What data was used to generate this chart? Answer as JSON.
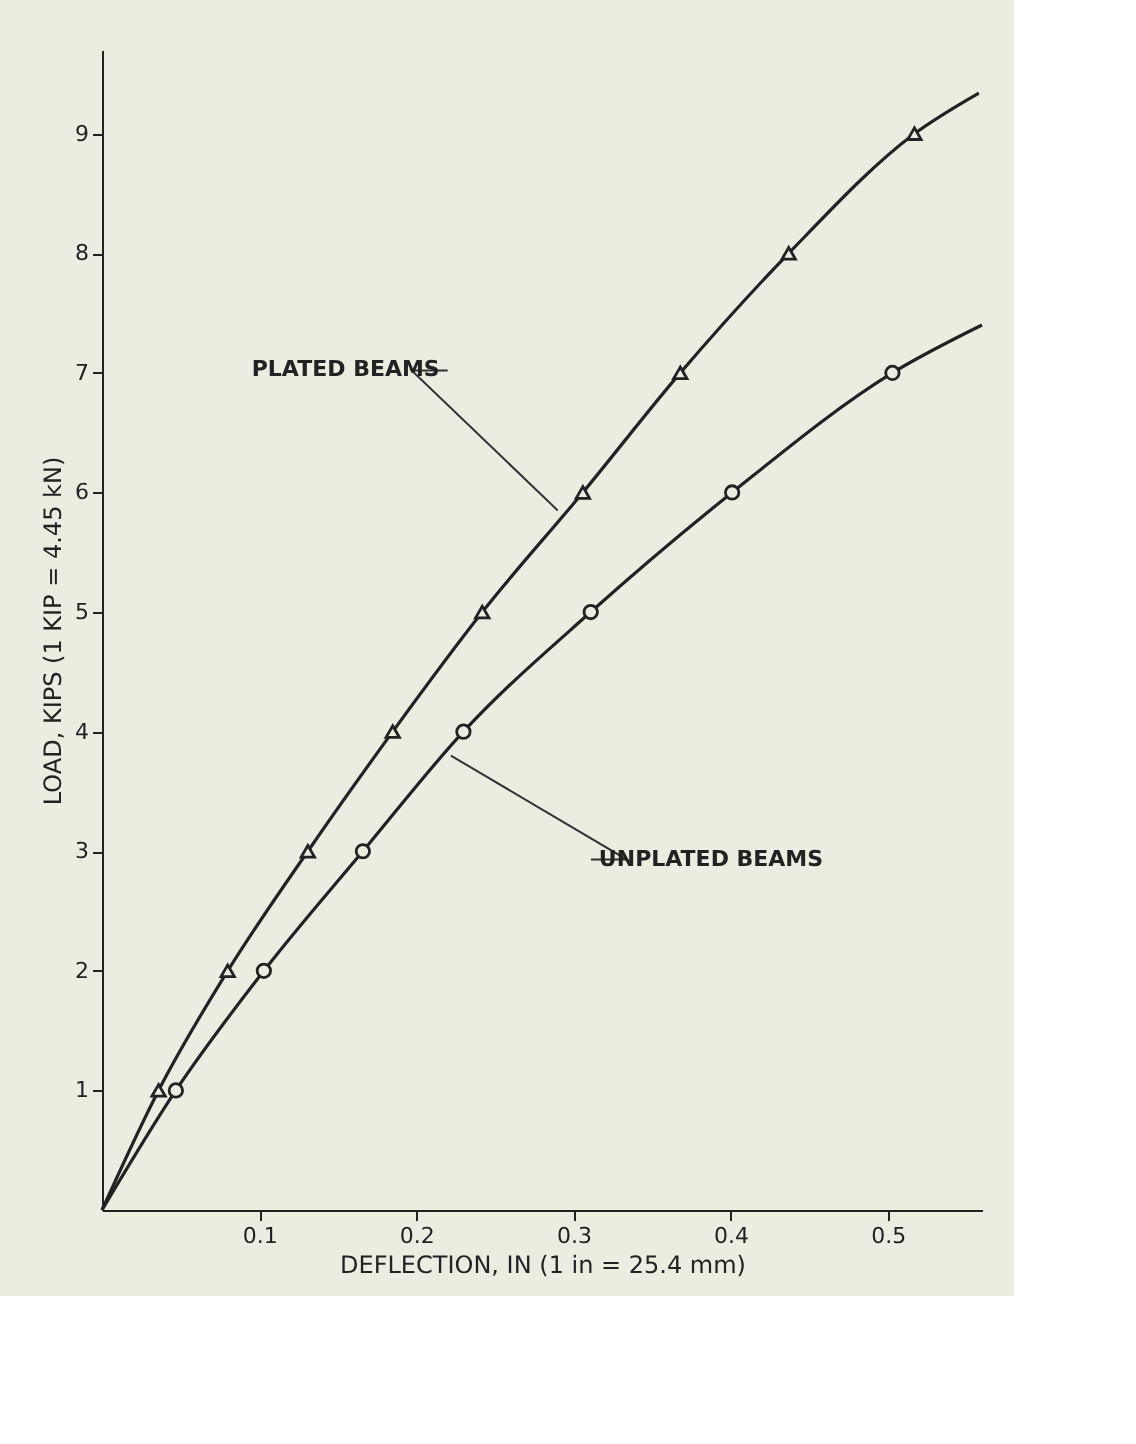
{
  "chart_data": {
    "type": "line",
    "xlabel": "DEFLECTION, IN (1 in = 25.4 mm)",
    "ylabel": "LOAD, KIPS (1 KIP = 4.45 kN)",
    "series": [
      {
        "type": "line",
        "marker": "none",
        "color": "#222222",
        "x": [
          0,
          0.036,
          0.08,
          0.131,
          0.185,
          0.242,
          0.306,
          0.368,
          0.437,
          0.517,
          0.558
        ],
        "values": [
          0,
          1,
          2,
          3,
          4,
          5,
          6,
          7,
          8,
          9,
          9.34
        ]
      },
      {
        "type": "scatter",
        "marker": "triangle",
        "color": "#222222",
        "x": [
          0.036,
          0.08,
          0.131,
          0.185,
          0.242,
          0.306,
          0.368,
          0.437,
          0.517
        ],
        "values": [
          1,
          2,
          3,
          4,
          5,
          6,
          7,
          8,
          9
        ]
      },
      {
        "type": "line",
        "marker": "none",
        "color": "#222222",
        "x": [
          0,
          0.047,
          0.103,
          0.166,
          0.23,
          0.311,
          0.401,
          0.503,
          0.56
        ],
        "values": [
          0,
          1,
          2,
          3,
          4,
          5,
          6,
          7,
          7.4
        ]
      },
      {
        "type": "scatter",
        "marker": "circle",
        "color": "#222222",
        "x": [
          0.047,
          0.103,
          0.166,
          0.23,
          0.311,
          0.401,
          0.503
        ],
        "values": [
          1,
          2,
          3,
          4,
          5,
          6,
          7
        ]
      }
    ],
    "annotations": [
      {
        "text": "PLATED BEAMS",
        "x": 0.29,
        "y": 5.85
      },
      {
        "text": "UNPLATED BEAMS",
        "x": 0.222,
        "y": 3.8
      }
    ],
    "xlim": [
      0,
      0.56
    ],
    "xticks": [
      0.1,
      0.2,
      0.3,
      0.4,
      0.5
    ],
    "ylim": [
      0,
      9.7
    ],
    "yticks": [
      1,
      2,
      3,
      4,
      5,
      6,
      7,
      8,
      9
    ],
    "grid": false
  }
}
